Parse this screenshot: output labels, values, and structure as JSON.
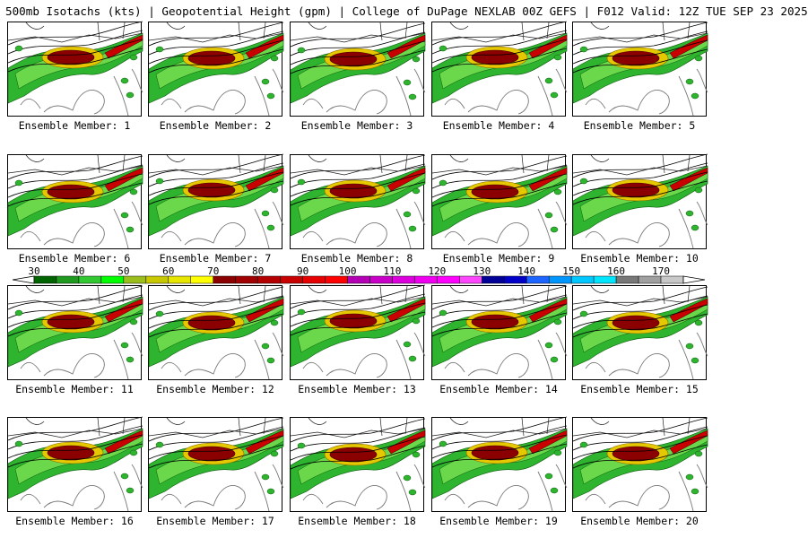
{
  "header": {
    "title": "500mb Isotachs (kts) | Geopotential Height (gpm) | College of DuPage NEXLAB   00Z GEFS | F012 Valid: 12Z TUE SEP 23 2025"
  },
  "panels": [
    {
      "label": "Ensemble Member: 1"
    },
    {
      "label": "Ensemble Member: 2"
    },
    {
      "label": "Ensemble Member: 3"
    },
    {
      "label": "Ensemble Member: 4"
    },
    {
      "label": "Ensemble Member: 5"
    },
    {
      "label": "Ensemble Member: 6"
    },
    {
      "label": "Ensemble Member: 7"
    },
    {
      "label": "Ensemble Member: 8"
    },
    {
      "label": "Ensemble Member: 9"
    },
    {
      "label": "Ensemble Member: 10"
    },
    {
      "label": "Ensemble Member: 11"
    },
    {
      "label": "Ensemble Member: 12"
    },
    {
      "label": "Ensemble Member: 13"
    },
    {
      "label": "Ensemble Member: 14"
    },
    {
      "label": "Ensemble Member: 15"
    },
    {
      "label": "Ensemble Member: 16"
    },
    {
      "label": "Ensemble Member: 17"
    },
    {
      "label": "Ensemble Member: 18"
    },
    {
      "label": "Ensemble Member: 19"
    },
    {
      "label": "Ensemble Member: 20"
    }
  ],
  "colorbar": {
    "tick_labels": [
      "30",
      "40",
      "50",
      "60",
      "70",
      "80",
      "90",
      "100",
      "110",
      "120",
      "130",
      "140",
      "150",
      "160",
      "170"
    ],
    "colors": [
      "#006400",
      "#1f9a1f",
      "#32c832",
      "#00ff00",
      "#9bbd1e",
      "#c8c800",
      "#e6e600",
      "#ffff00",
      "#8b0000",
      "#a00000",
      "#b40000",
      "#c80000",
      "#e60000",
      "#ff0000",
      "#b400b4",
      "#c800c8",
      "#dc00dc",
      "#f000f0",
      "#ff00ff",
      "#ff46ff",
      "#000096",
      "#0000c8",
      "#1e64ff",
      "#0096ff",
      "#00c8ff",
      "#00e6ff",
      "#787878",
      "#a0a0a0",
      "#c8c8c8"
    ]
  }
}
